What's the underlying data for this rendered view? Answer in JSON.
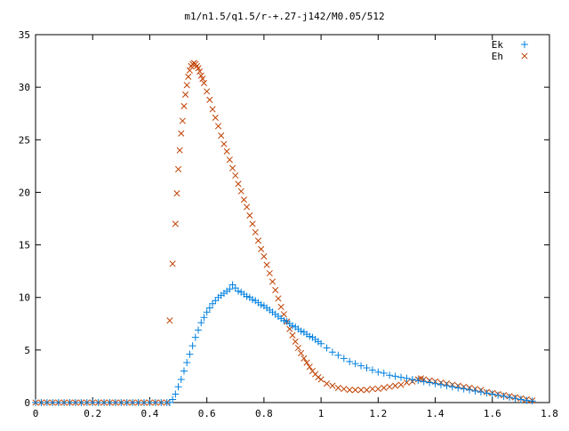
{
  "chart_data": {
    "type": "scatter",
    "title": "m1/n1.5/q1.5/r-+.27-j142/M0.05/512",
    "xlabel": "",
    "ylabel": "",
    "xlim": [
      0,
      1.8
    ],
    "ylim": [
      0,
      35
    ],
    "grid": false,
    "legend_position": "top-right",
    "x_ticks": [
      0,
      0.2,
      0.4,
      0.6,
      0.8,
      1,
      1.2,
      1.4,
      1.6,
      1.8
    ],
    "x_tick_labels": [
      "0",
      "0.2",
      "0.4",
      "0.6",
      "0.8",
      "1",
      "1.2",
      "1.4",
      "1.6",
      "1.8"
    ],
    "y_ticks": [
      0,
      5,
      10,
      15,
      20,
      25,
      30,
      35
    ],
    "y_tick_labels": [
      "0",
      "5",
      "10",
      "15",
      "20",
      "25",
      "30",
      "35"
    ],
    "series": [
      {
        "name": "Ek",
        "marker": "plus",
        "color": "#0080e0",
        "points": [
          [
            0.0,
            0
          ],
          [
            0.02,
            0
          ],
          [
            0.04,
            0
          ],
          [
            0.06,
            0
          ],
          [
            0.08,
            0
          ],
          [
            0.1,
            0
          ],
          [
            0.12,
            0
          ],
          [
            0.14,
            0
          ],
          [
            0.16,
            0
          ],
          [
            0.18,
            0
          ],
          [
            0.2,
            0
          ],
          [
            0.22,
            0
          ],
          [
            0.24,
            0
          ],
          [
            0.26,
            0
          ],
          [
            0.28,
            0
          ],
          [
            0.3,
            0
          ],
          [
            0.32,
            0
          ],
          [
            0.34,
            0
          ],
          [
            0.36,
            0
          ],
          [
            0.38,
            0
          ],
          [
            0.4,
            0
          ],
          [
            0.42,
            0
          ],
          [
            0.44,
            0
          ],
          [
            0.46,
            0
          ],
          [
            0.47,
            0
          ],
          [
            0.48,
            0.3
          ],
          [
            0.49,
            0.8
          ],
          [
            0.5,
            1.5
          ],
          [
            0.51,
            2.2
          ],
          [
            0.52,
            3.0
          ],
          [
            0.53,
            3.8
          ],
          [
            0.54,
            4.6
          ],
          [
            0.55,
            5.4
          ],
          [
            0.56,
            6.2
          ],
          [
            0.57,
            6.9
          ],
          [
            0.58,
            7.6
          ],
          [
            0.59,
            8.1
          ],
          [
            0.6,
            8.6
          ],
          [
            0.61,
            9.0
          ],
          [
            0.62,
            9.4
          ],
          [
            0.63,
            9.7
          ],
          [
            0.64,
            10.0
          ],
          [
            0.65,
            10.2
          ],
          [
            0.66,
            10.4
          ],
          [
            0.67,
            10.6
          ],
          [
            0.68,
            10.8
          ],
          [
            0.69,
            11.2
          ],
          [
            0.7,
            10.9
          ],
          [
            0.71,
            10.6
          ],
          [
            0.72,
            10.5
          ],
          [
            0.73,
            10.3
          ],
          [
            0.74,
            10.1
          ],
          [
            0.75,
            10.0
          ],
          [
            0.76,
            9.8
          ],
          [
            0.77,
            9.7
          ],
          [
            0.78,
            9.5
          ],
          [
            0.79,
            9.3
          ],
          [
            0.8,
            9.2
          ],
          [
            0.81,
            9.0
          ],
          [
            0.82,
            8.8
          ],
          [
            0.83,
            8.6
          ],
          [
            0.84,
            8.4
          ],
          [
            0.85,
            8.2
          ],
          [
            0.86,
            8.0
          ],
          [
            0.87,
            7.8
          ],
          [
            0.88,
            7.7
          ],
          [
            0.89,
            7.5
          ],
          [
            0.9,
            7.3
          ],
          [
            0.91,
            7.2
          ],
          [
            0.92,
            7.0
          ],
          [
            0.93,
            6.8
          ],
          [
            0.94,
            6.7
          ],
          [
            0.95,
            6.5
          ],
          [
            0.96,
            6.3
          ],
          [
            0.97,
            6.2
          ],
          [
            0.98,
            6.0
          ],
          [
            0.99,
            5.8
          ],
          [
            1.0,
            5.6
          ],
          [
            1.02,
            5.2
          ],
          [
            1.04,
            4.8
          ],
          [
            1.06,
            4.5
          ],
          [
            1.08,
            4.2
          ],
          [
            1.1,
            3.9
          ],
          [
            1.12,
            3.7
          ],
          [
            1.14,
            3.5
          ],
          [
            1.16,
            3.3
          ],
          [
            1.18,
            3.1
          ],
          [
            1.2,
            2.9
          ],
          [
            1.22,
            2.8
          ],
          [
            1.24,
            2.6
          ],
          [
            1.26,
            2.5
          ],
          [
            1.28,
            2.4
          ],
          [
            1.3,
            2.3
          ],
          [
            1.32,
            2.2
          ],
          [
            1.34,
            2.1
          ],
          [
            1.36,
            2.0
          ],
          [
            1.38,
            1.9
          ],
          [
            1.4,
            1.8
          ],
          [
            1.42,
            1.7
          ],
          [
            1.44,
            1.6
          ],
          [
            1.46,
            1.5
          ],
          [
            1.48,
            1.4
          ],
          [
            1.5,
            1.3
          ],
          [
            1.52,
            1.2
          ],
          [
            1.54,
            1.1
          ],
          [
            1.56,
            1.0
          ],
          [
            1.58,
            0.9
          ],
          [
            1.6,
            0.8
          ],
          [
            1.62,
            0.7
          ],
          [
            1.64,
            0.6
          ],
          [
            1.66,
            0.5
          ],
          [
            1.68,
            0.4
          ],
          [
            1.7,
            0.3
          ],
          [
            1.72,
            0.2
          ],
          [
            1.74,
            0.15
          ]
        ]
      },
      {
        "name": "Eh",
        "marker": "cross",
        "color": "#c04000",
        "points": [
          [
            0.0,
            0
          ],
          [
            0.02,
            0
          ],
          [
            0.04,
            0
          ],
          [
            0.06,
            0
          ],
          [
            0.08,
            0
          ],
          [
            0.1,
            0
          ],
          [
            0.12,
            0
          ],
          [
            0.14,
            0
          ],
          [
            0.16,
            0
          ],
          [
            0.18,
            0
          ],
          [
            0.2,
            0
          ],
          [
            0.22,
            0
          ],
          [
            0.24,
            0
          ],
          [
            0.26,
            0
          ],
          [
            0.28,
            0
          ],
          [
            0.3,
            0
          ],
          [
            0.32,
            0
          ],
          [
            0.34,
            0
          ],
          [
            0.36,
            0
          ],
          [
            0.38,
            0
          ],
          [
            0.4,
            0
          ],
          [
            0.42,
            0
          ],
          [
            0.44,
            0
          ],
          [
            0.46,
            0
          ],
          [
            0.47,
            7.8
          ],
          [
            0.48,
            13.2
          ],
          [
            0.49,
            17.0
          ],
          [
            0.495,
            19.9
          ],
          [
            0.5,
            22.2
          ],
          [
            0.505,
            24.0
          ],
          [
            0.51,
            25.6
          ],
          [
            0.515,
            26.8
          ],
          [
            0.52,
            28.2
          ],
          [
            0.525,
            29.3
          ],
          [
            0.53,
            30.2
          ],
          [
            0.535,
            31.0
          ],
          [
            0.54,
            31.6
          ],
          [
            0.545,
            32.0
          ],
          [
            0.55,
            32.2
          ],
          [
            0.555,
            32.3
          ],
          [
            0.56,
            32.2
          ],
          [
            0.565,
            32.0
          ],
          [
            0.57,
            31.8
          ],
          [
            0.575,
            31.5
          ],
          [
            0.58,
            31.1
          ],
          [
            0.585,
            30.8
          ],
          [
            0.59,
            30.4
          ],
          [
            0.6,
            29.6
          ],
          [
            0.61,
            28.8
          ],
          [
            0.62,
            27.9
          ],
          [
            0.63,
            27.1
          ],
          [
            0.64,
            26.3
          ],
          [
            0.65,
            25.4
          ],
          [
            0.66,
            24.6
          ],
          [
            0.67,
            23.9
          ],
          [
            0.68,
            23.1
          ],
          [
            0.69,
            22.3
          ],
          [
            0.7,
            21.6
          ],
          [
            0.71,
            20.8
          ],
          [
            0.72,
            20.1
          ],
          [
            0.73,
            19.3
          ],
          [
            0.74,
            18.6
          ],
          [
            0.75,
            17.8
          ],
          [
            0.76,
            17.0
          ],
          [
            0.77,
            16.2
          ],
          [
            0.78,
            15.4
          ],
          [
            0.79,
            14.6
          ],
          [
            0.8,
            13.9
          ],
          [
            0.81,
            13.1
          ],
          [
            0.82,
            12.3
          ],
          [
            0.83,
            11.5
          ],
          [
            0.84,
            10.7
          ],
          [
            0.85,
            9.9
          ],
          [
            0.86,
            9.1
          ],
          [
            0.87,
            8.4
          ],
          [
            0.88,
            7.7
          ],
          [
            0.89,
            7.0
          ],
          [
            0.9,
            6.4
          ],
          [
            0.91,
            5.8
          ],
          [
            0.92,
            5.2
          ],
          [
            0.93,
            4.7
          ],
          [
            0.94,
            4.2
          ],
          [
            0.95,
            3.8
          ],
          [
            0.96,
            3.4
          ],
          [
            0.97,
            3.0
          ],
          [
            0.98,
            2.7
          ],
          [
            0.99,
            2.4
          ],
          [
            1.0,
            2.2
          ],
          [
            1.02,
            1.8
          ],
          [
            1.04,
            1.6
          ],
          [
            1.06,
            1.4
          ],
          [
            1.08,
            1.3
          ],
          [
            1.1,
            1.2
          ],
          [
            1.12,
            1.2
          ],
          [
            1.14,
            1.2
          ],
          [
            1.16,
            1.2
          ],
          [
            1.18,
            1.3
          ],
          [
            1.2,
            1.3
          ],
          [
            1.22,
            1.4
          ],
          [
            1.24,
            1.5
          ],
          [
            1.26,
            1.6
          ],
          [
            1.28,
            1.7
          ],
          [
            1.3,
            1.9
          ],
          [
            1.32,
            2.0
          ],
          [
            1.34,
            2.2
          ],
          [
            1.35,
            2.3
          ],
          [
            1.36,
            2.2
          ],
          [
            1.38,
            2.1
          ],
          [
            1.4,
            2.0
          ],
          [
            1.42,
            1.9
          ],
          [
            1.44,
            1.8
          ],
          [
            1.46,
            1.7
          ],
          [
            1.48,
            1.6
          ],
          [
            1.5,
            1.5
          ],
          [
            1.52,
            1.4
          ],
          [
            1.54,
            1.3
          ],
          [
            1.56,
            1.2
          ],
          [
            1.58,
            1.0
          ],
          [
            1.6,
            0.9
          ],
          [
            1.62,
            0.8
          ],
          [
            1.64,
            0.7
          ],
          [
            1.66,
            0.6
          ],
          [
            1.68,
            0.5
          ],
          [
            1.7,
            0.4
          ],
          [
            1.72,
            0.3
          ],
          [
            1.74,
            0.2
          ]
        ]
      }
    ]
  }
}
